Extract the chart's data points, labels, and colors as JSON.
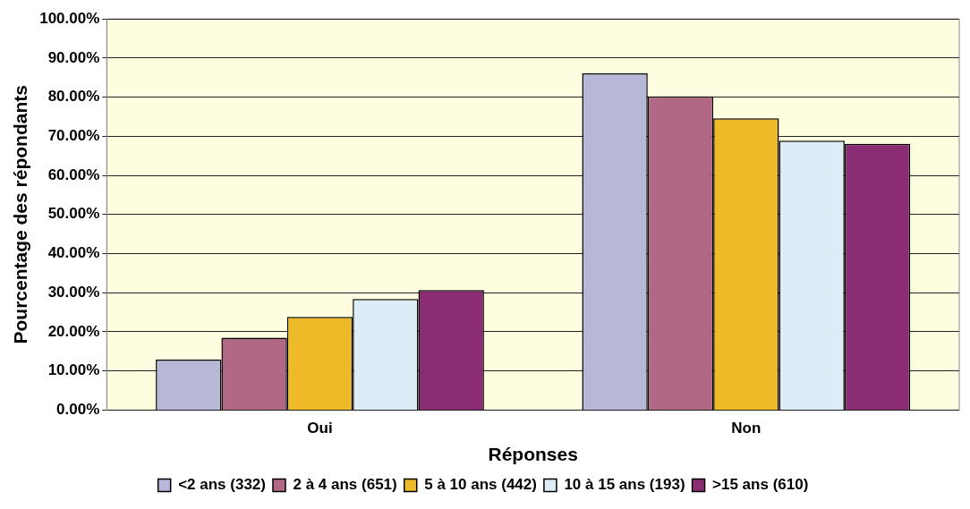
{
  "chart_data": {
    "type": "bar",
    "xlabel": "Réponses",
    "ylabel": "Pourcentage des répondants",
    "categories": [
      "Oui",
      "Non"
    ],
    "series": [
      {
        "name": "<2 ans (332)",
        "color": "#b7b7d7",
        "values": [
          12.9,
          86.1
        ]
      },
      {
        "name": "2 à 4 ans (651)",
        "color": "#b16884",
        "values": [
          18.5,
          80.2
        ]
      },
      {
        "name": "5 à 10 ans (442)",
        "color": "#eeba28",
        "values": [
          23.8,
          74.6
        ]
      },
      {
        "name": "10 à 15 ans (193)",
        "color": "#dcedf8",
        "values": [
          28.4,
          68.9
        ]
      },
      {
        "name": ">15 ans (610)",
        "color": "#8a2d74",
        "values": [
          30.7,
          68.1
        ]
      }
    ],
    "ylim": [
      0,
      100
    ],
    "yticks": [
      {
        "value": 0,
        "label": "0.00%"
      },
      {
        "value": 10,
        "label": "10.00%"
      },
      {
        "value": 20,
        "label": "20.00%"
      },
      {
        "value": 30,
        "label": "30.00%"
      },
      {
        "value": 40,
        "label": "40.00%"
      },
      {
        "value": 50,
        "label": "50.00%"
      },
      {
        "value": 60,
        "label": "60.00%"
      },
      {
        "value": 70,
        "label": "70.00%"
      },
      {
        "value": 80,
        "label": "80.00%"
      },
      {
        "value": 90,
        "label": "90.00%"
      },
      {
        "value": 100,
        "label": "100.00%"
      }
    ],
    "grid": "y",
    "legend": "bottom"
  }
}
